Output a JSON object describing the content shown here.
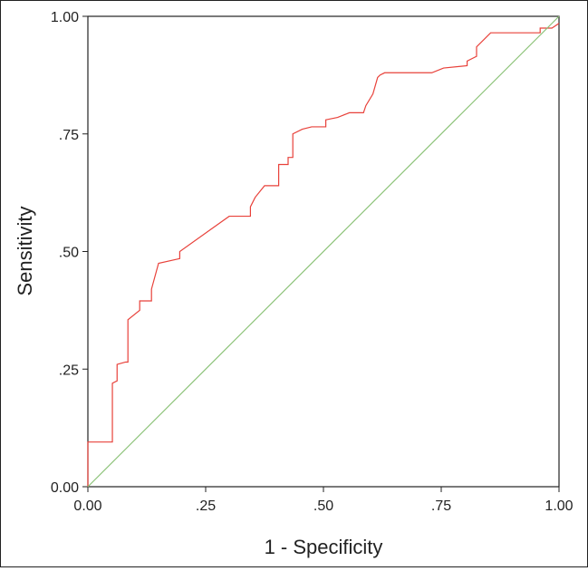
{
  "chart_data": {
    "type": "line",
    "title": "",
    "xlabel": "1 - Specificity",
    "ylabel": "Sensitivity",
    "xlim": [
      0,
      1
    ],
    "ylim": [
      0,
      1
    ],
    "x_ticks": [
      0,
      0.25,
      0.5,
      0.75,
      1
    ],
    "x_tick_labels": [
      "0.00",
      ".25",
      ".50",
      ".75",
      "1.00"
    ],
    "y_ticks": [
      0,
      0.25,
      0.5,
      0.75,
      1
    ],
    "y_tick_labels": [
      "0.00",
      ".25",
      ".50",
      ".75",
      "1.00"
    ],
    "grid": false,
    "legend": "none",
    "colors": {
      "roc": "#e8413a",
      "reference": "#8bc277",
      "axis": "#222222"
    },
    "series": [
      {
        "kind": "roc-curve",
        "x": [
          0.0,
          0.0,
          0.052,
          0.052,
          0.062,
          0.062,
          0.08,
          0.085,
          0.085,
          0.11,
          0.11,
          0.135,
          0.135,
          0.15,
          0.195,
          0.195,
          0.3,
          0.345,
          0.345,
          0.355,
          0.375,
          0.405,
          0.405,
          0.425,
          0.425,
          0.435,
          0.435,
          0.455,
          0.475,
          0.505,
          0.505,
          0.53,
          0.555,
          0.585,
          0.59,
          0.605,
          0.615,
          0.62,
          0.63,
          0.73,
          0.755,
          0.805,
          0.805,
          0.825,
          0.825,
          0.855,
          0.96,
          0.96,
          0.985,
          1.0
        ],
        "y": [
          0.0,
          0.095,
          0.095,
          0.22,
          0.225,
          0.26,
          0.265,
          0.265,
          0.355,
          0.375,
          0.395,
          0.395,
          0.42,
          0.475,
          0.485,
          0.5,
          0.575,
          0.575,
          0.595,
          0.615,
          0.64,
          0.64,
          0.685,
          0.685,
          0.7,
          0.7,
          0.75,
          0.76,
          0.765,
          0.765,
          0.78,
          0.785,
          0.795,
          0.795,
          0.81,
          0.835,
          0.87,
          0.875,
          0.88,
          0.88,
          0.89,
          0.895,
          0.905,
          0.915,
          0.935,
          0.965,
          0.965,
          0.975,
          0.975,
          0.985
        ]
      },
      {
        "kind": "reference-line",
        "x": [
          0,
          1
        ],
        "y": [
          0,
          1
        ]
      }
    ]
  }
}
